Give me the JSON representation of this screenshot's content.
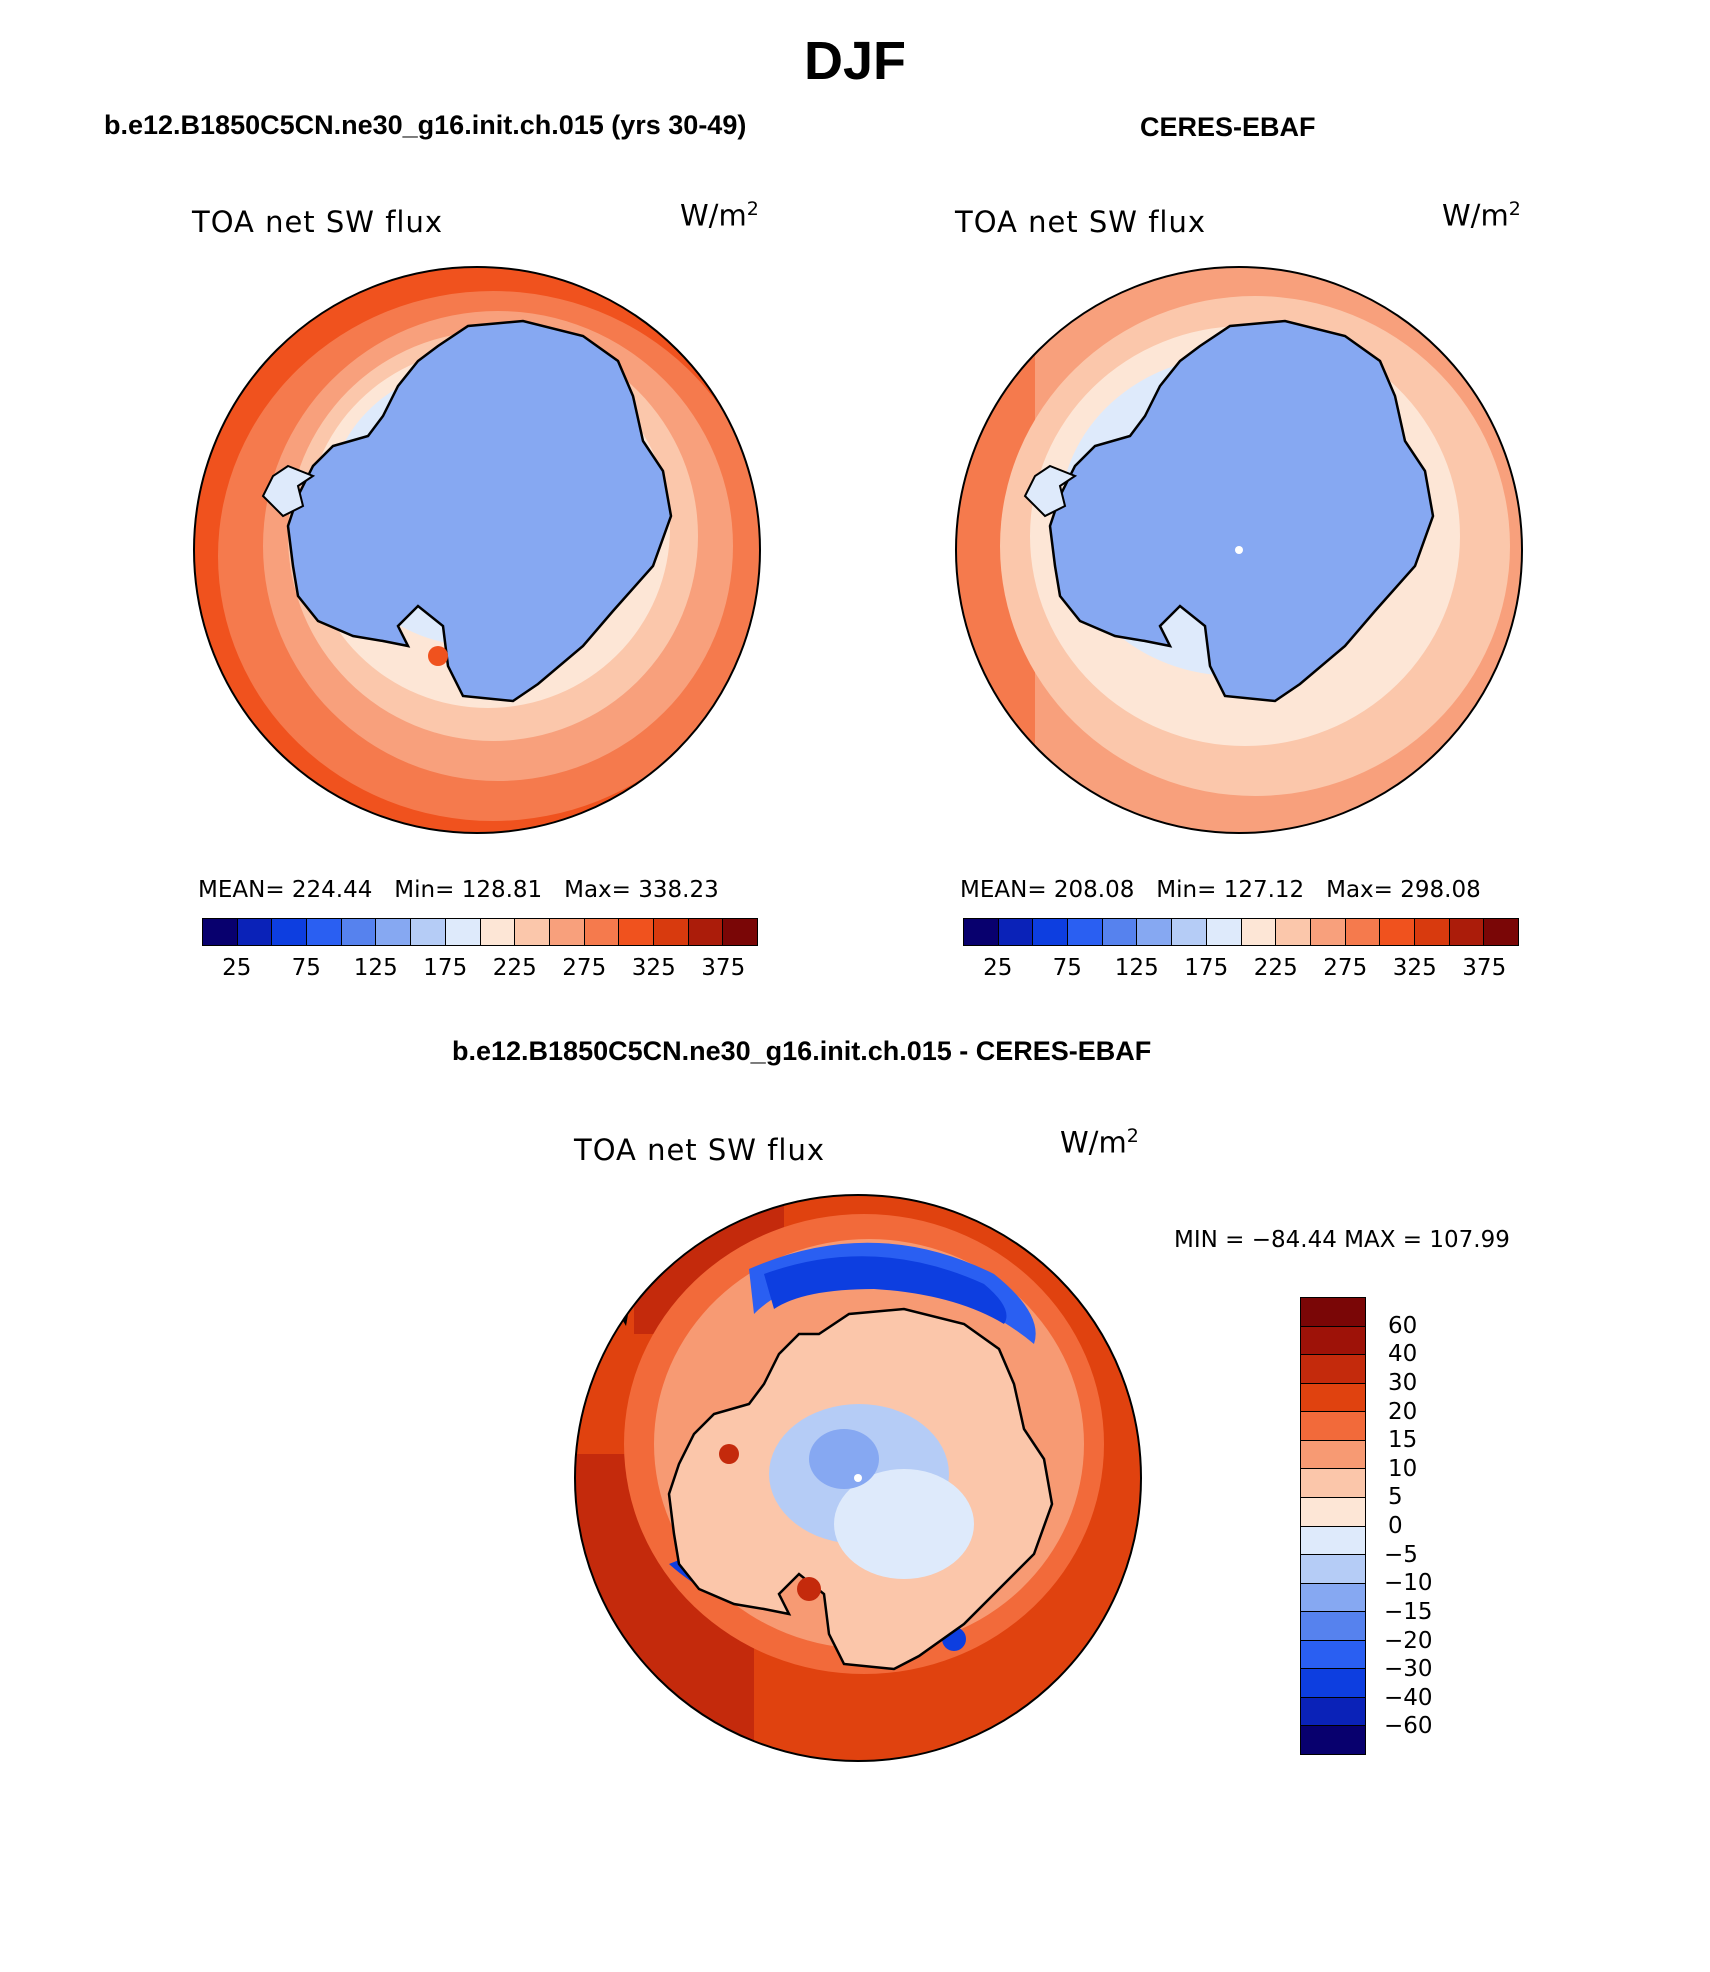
{
  "title": "DJF",
  "panels": [
    {
      "title": "b.e12.B1850C5CN.ne30_g16.init.ch.015 (yrs 30-49)",
      "variable": "TOA net SW flux",
      "units_base": "W/m",
      "units_exp": "2",
      "stats": "MEAN= 224.44   Min= 128.81   Max= 338.23",
      "colorbar_labels": [
        "25",
        "75",
        "125",
        "175",
        "225",
        "275",
        "325",
        "375"
      ]
    },
    {
      "title": "CERES-EBAF",
      "variable": "TOA net SW flux",
      "units_base": "W/m",
      "units_exp": "2",
      "stats": "MEAN= 208.08   Min= 127.12   Max= 298.08",
      "colorbar_labels": [
        "25",
        "75",
        "125",
        "175",
        "225",
        "275",
        "325",
        "375"
      ]
    }
  ],
  "diff": {
    "title": "b.e12.B1850C5CN.ne30_g16.init.ch.015 - CERES-EBAF",
    "variable": "TOA net SW flux",
    "units_base": "W/m",
    "units_exp": "2",
    "stats": "MIN = −84.44 MAX = 107.99",
    "colorbar_labels": [
      "60",
      "40",
      "30",
      "20",
      "15",
      "10",
      "5",
      "0",
      "−5",
      "−10",
      "−15",
      "−20",
      "−30",
      "−40",
      "−60"
    ]
  },
  "colors": {
    "field_scale": [
      "#08006e",
      "#0a22b8",
      "#0d3ee0",
      "#2a5ff2",
      "#5682ee",
      "#86a8f2",
      "#b5ccf6",
      "#deeafb",
      "#fde6d6",
      "#fbc7ab",
      "#f8a07c",
      "#f57a4d",
      "#f0521e",
      "#d83a0e",
      "#ab1c0a",
      "#7a0606"
    ],
    "diff_scale": [
      "#7a0606",
      "#9e1208",
      "#c42a0c",
      "#e0420f",
      "#f26a3a",
      "#f79a73",
      "#fbc6aa",
      "#fde6d6",
      "#deeafb",
      "#b5ccf6",
      "#86a8f2",
      "#5682ee",
      "#2a5ff2",
      "#0d3ee0",
      "#0a22b8",
      "#08006e"
    ]
  }
}
